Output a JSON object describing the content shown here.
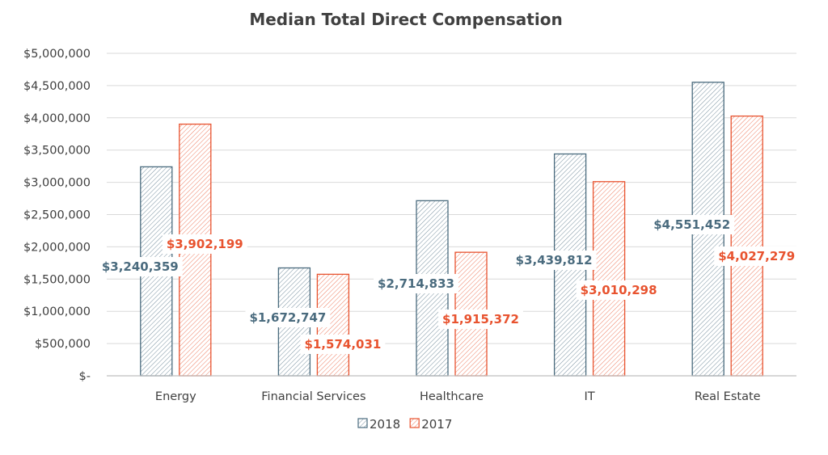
{
  "chart_data": {
    "type": "bar",
    "title": "Median Total Direct Compensation",
    "xlabel": "",
    "ylabel": "",
    "categories": [
      "Energy",
      "Financial Services",
      "Healthcare",
      "IT",
      "Real Estate"
    ],
    "ylim": [
      0,
      5000000
    ],
    "yticks": [
      0,
      500000,
      1000000,
      1500000,
      2000000,
      2500000,
      3000000,
      3500000,
      4000000,
      4500000,
      5000000
    ],
    "ytick_labels": [
      "$-",
      "$500,000",
      "$1,000,000",
      "$1,500,000",
      "$2,000,000",
      "$2,500,000",
      "$3,000,000",
      "$3,500,000",
      "$4,000,000",
      "$4,500,000",
      "$5,000,000"
    ],
    "grid": true,
    "legend_position": "bottom",
    "series": [
      {
        "name": "2018",
        "color": "#4a6b7e",
        "values": [
          3240359,
          1672747,
          2714833,
          3439812,
          4551452
        ],
        "labels": [
          "$3,240,359",
          "$1,672,747",
          "$2,714,833",
          "$3,439,812",
          "$4,551,452"
        ],
        "fill": "diagonal-hatch"
      },
      {
        "name": "2017",
        "color": "#e8532f",
        "values": [
          3902199,
          1574031,
          1915372,
          3010298,
          4027279
        ],
        "labels": [
          "$3,902,199",
          "$1,574,031",
          "$1,915,372",
          "$3,010,298",
          "$4,027,279"
        ],
        "fill": "diagonal-hatch"
      }
    ]
  }
}
